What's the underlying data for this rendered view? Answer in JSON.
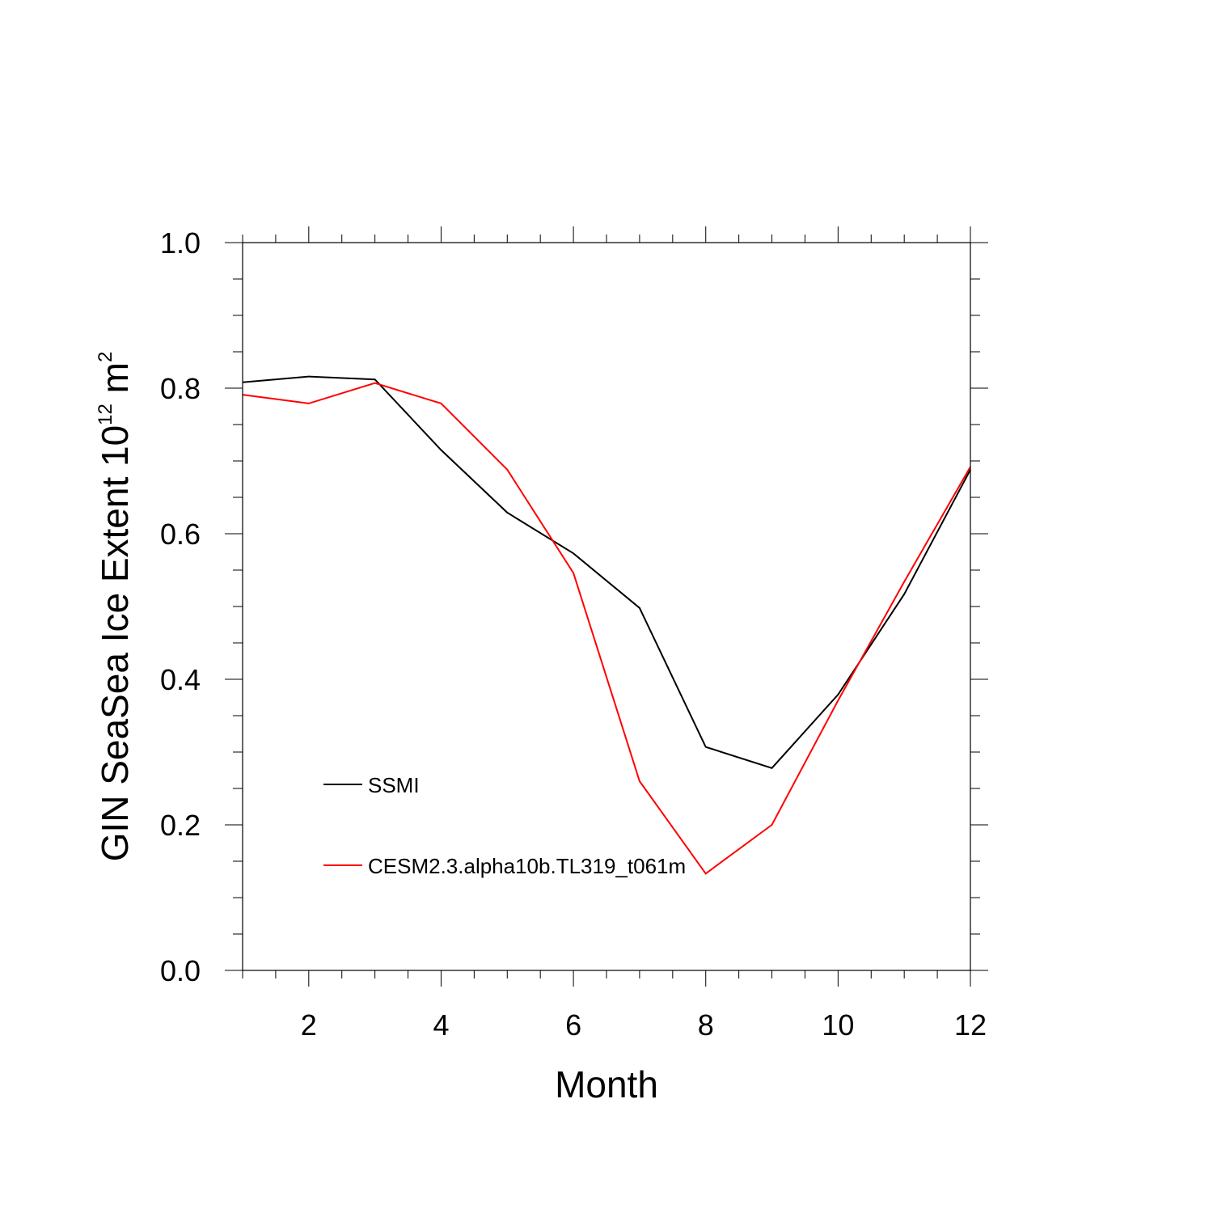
{
  "chart_data": {
    "type": "line",
    "xlabel": "Month",
    "ylabel": {
      "prefix": "GIN SeaSea Ice Extent 10",
      "exp1": "12",
      "mid": " m",
      "exp2": "2"
    },
    "xlim": [
      1,
      12
    ],
    "ylim": [
      0.0,
      1.0
    ],
    "x_ticks": [
      2,
      4,
      6,
      8,
      10,
      12
    ],
    "y_ticks": [
      "0.0",
      "0.2",
      "0.4",
      "0.6",
      "0.8",
      "1.0"
    ],
    "x": [
      1,
      2,
      3,
      4,
      5,
      6,
      7,
      8,
      9,
      10,
      11,
      12
    ],
    "series": [
      {
        "name": "SSMI",
        "color": "#000000",
        "values": [
          0.808,
          0.816,
          0.812,
          0.715,
          0.629,
          0.573,
          0.498,
          0.307,
          0.278,
          0.379,
          0.517,
          0.688
        ]
      },
      {
        "name": "CESM2.3.alpha10b.TL319_t061m",
        "color": "#ff0000",
        "values": [
          0.791,
          0.779,
          0.807,
          0.779,
          0.688,
          0.546,
          0.26,
          0.133,
          0.2,
          0.371,
          0.534,
          0.692
        ]
      }
    ],
    "legend_position": "lower-left inside"
  }
}
